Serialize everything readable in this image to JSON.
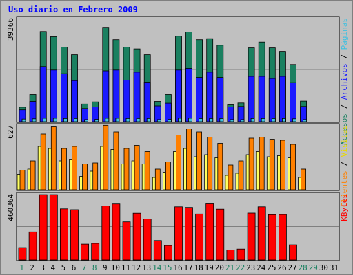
{
  "chart_data": {
    "type": "bar",
    "title": "Uso diario en Febrero 2009",
    "days": [
      "1",
      "2",
      "3",
      "4",
      "5",
      "6",
      "7",
      "8",
      "9",
      "10",
      "11",
      "12",
      "13",
      "14",
      "15",
      "16",
      "17",
      "18",
      "19",
      "20",
      "21",
      "22",
      "23",
      "24",
      "25",
      "26",
      "27",
      "28",
      "29",
      "30",
      "31"
    ],
    "weekend_days": [
      1,
      7,
      8,
      14,
      15,
      21,
      22,
      28,
      29
    ],
    "panels": [
      {
        "id": "top",
        "max_label": "39366",
        "ymax": 39366,
        "series": [
          {
            "name": "Accesos",
            "color": "#1a8060",
            "values": [
              5500,
              10300,
              34200,
              32200,
              28300,
              25400,
              6700,
              7500,
              35800,
              31100,
              28300,
              27600,
              25400,
              7700,
              10300,
              32400,
              34000,
              31100,
              31500,
              29000,
              6400,
              7100,
              28000,
              30200,
              28000,
              26700,
              21700,
              7800,
              0,
              0,
              0
            ]
          },
          {
            "name": "Archivos",
            "color": "#1a1aff",
            "values": [
              4500,
              7700,
              20900,
              19600,
              18200,
              15600,
              5000,
              5600,
              19300,
              19600,
              15800,
              18800,
              15000,
              6000,
              7000,
              19600,
              20200,
              16800,
              18800,
              16800,
              5600,
              5800,
              17200,
              17200,
              16400,
              17200,
              14800,
              5800,
              0,
              0,
              0
            ]
          },
          {
            "name": "Páginas",
            "color": "#40c0e0",
            "values": [
              1000,
              1100,
              1300,
              1300,
              1200,
              1200,
              800,
              900,
              1300,
              1300,
              1200,
              1200,
              1200,
              800,
              900,
              1300,
              1300,
              1200,
              1200,
              1200,
              800,
              800,
              1200,
              1200,
              1200,
              1200,
              1100,
              800,
              0,
              0,
              0
            ]
          }
        ]
      },
      {
        "id": "mid",
        "max_label": "627",
        "ymax": 627,
        "series": [
          {
            "name": "Visitas",
            "color": "#ffff60",
            "values": [
              150,
              200,
              420,
              400,
              280,
              290,
              130,
              180,
              420,
              390,
              250,
              280,
              250,
              120,
              170,
              370,
              400,
              320,
              340,
              310,
              140,
              160,
              340,
              370,
              320,
              330,
              310,
              120,
              0,
              0,
              0
            ]
          },
          {
            "name": "Clientes",
            "color": "#ff8000",
            "values": [
              190,
              280,
              540,
              610,
              400,
              420,
              250,
              260,
              625,
              560,
              400,
              430,
              370,
              200,
              270,
              530,
              590,
              560,
              510,
              450,
              240,
              280,
              500,
              510,
              490,
              480,
              440,
              200,
              0,
              0,
              0
            ]
          }
        ]
      },
      {
        "id": "bottom",
        "max_label": "460364",
        "ymax": 460364,
        "series": [
          {
            "name": "KBytes",
            "color": "#ff0000",
            "values": [
              86000,
              195000,
              455000,
              455000,
              356000,
              350000,
              110000,
              115000,
              376000,
              390000,
              265000,
              325000,
              285000,
              135000,
              100000,
              370000,
              366000,
              320000,
              391000,
              354000,
              70000,
              76000,
              326000,
              370000,
              315000,
              316000,
              105000,
              0,
              0,
              0,
              0
            ]
          }
        ]
      }
    ],
    "legend_right": {
      "top": [
        {
          "text": "Accesos",
          "color": "#1a8060"
        },
        {
          "text": " / ",
          "color": "#000000"
        },
        {
          "text": "Archivos",
          "color": "#1a1aff"
        },
        {
          "text": " / ",
          "color": "#000000"
        },
        {
          "text": "Páginas",
          "color": "#40c0e0"
        }
      ],
      "mid": [
        {
          "text": "Clientes",
          "color": "#ff8000"
        },
        {
          "text": " / ",
          "color": "#000000"
        },
        {
          "text": "Visitas",
          "color": "#e8d800"
        }
      ],
      "bottom": [
        {
          "text": "KBytes",
          "color": "#ff0000"
        }
      ]
    }
  }
}
